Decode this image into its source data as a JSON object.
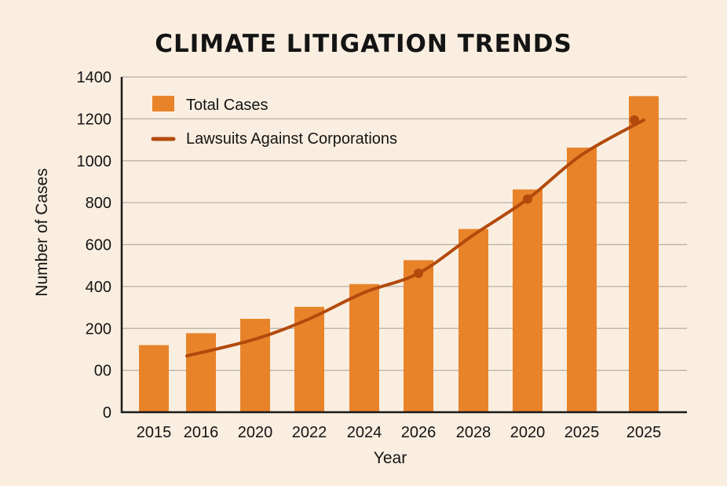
{
  "chart_data": {
    "type": "bar",
    "title": "CLIMATE LITIGATION TRENDS",
    "xlabel": "Year",
    "ylabel": "Number of Cases",
    "categories": [
      "2015",
      "2016",
      "2020",
      "2022",
      "2024",
      "2026",
      "2028",
      "2020",
      "2025",
      "2025"
    ],
    "ytick_labels": [
      "0",
      "00",
      "200",
      "400",
      "600",
      "800",
      "1000",
      "1200",
      "1400"
    ],
    "ylim": [
      0,
      1400
    ],
    "grid": true,
    "legend_position": "top-left",
    "series": [
      {
        "name": "Total Cases",
        "type": "bar",
        "color": "#e8832a",
        "values": [
          280,
          330,
          390,
          440,
          535,
          635,
          765,
          930,
          1105,
          1320
        ]
      },
      {
        "name": "Lawsuits Against Corporations",
        "type": "line",
        "color": "#b34a0c",
        "values": [
          null,
          235,
          305,
          390,
          500,
          580,
          740,
          890,
          1075,
          1220
        ],
        "markers_at": [
          "2026",
          "2020",
          "2025"
        ]
      }
    ]
  }
}
